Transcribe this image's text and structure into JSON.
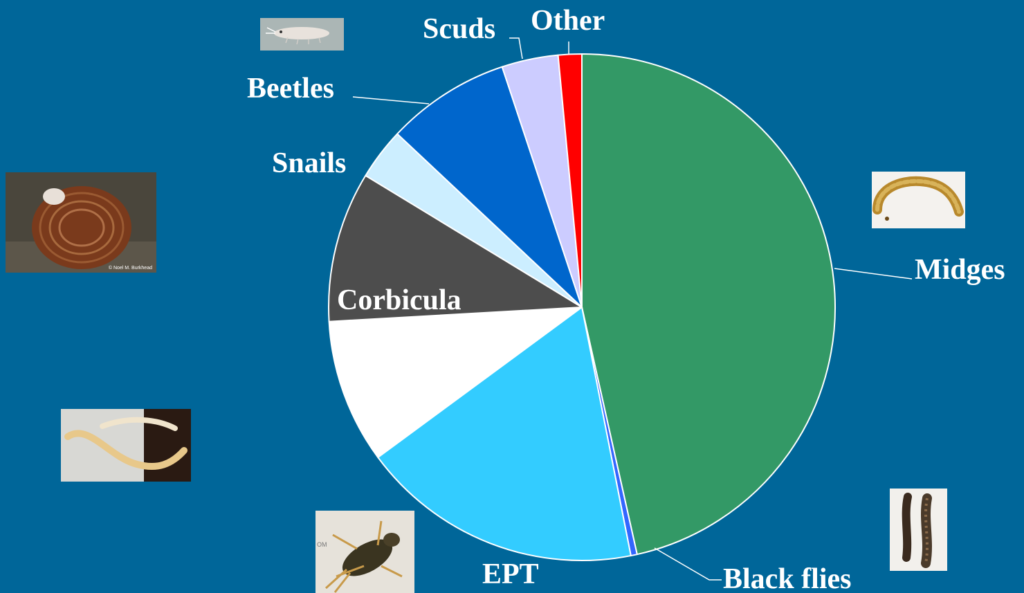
{
  "chart_data": {
    "type": "pie",
    "title": "",
    "start_angle_deg": 0,
    "direction": "clockwise",
    "slices": [
      {
        "label": "Midges",
        "value": 46.5,
        "color": "#339966"
      },
      {
        "label": "Black flies",
        "value": 0.4,
        "color": "#3366ff"
      },
      {
        "label": "EPT",
        "value": 18.0,
        "color": "#33ccff"
      },
      {
        "label": "",
        "value": 9.2,
        "color": "#ffffff"
      },
      {
        "label": "Corbicula",
        "value": 9.6,
        "color": "#4d4d4d"
      },
      {
        "label": "Snails",
        "value": 3.3,
        "color": "#cceeff"
      },
      {
        "label": "Beetles",
        "value": 7.9,
        "color": "#0066cc"
      },
      {
        "label": "Scuds",
        "value": 3.6,
        "color": "#ccccff"
      },
      {
        "label": "Other",
        "value": 1.5,
        "color": "#ff0000"
      }
    ],
    "legend": "none"
  },
  "photos": [
    {
      "name": "scud-photo",
      "depicts": "scud"
    },
    {
      "name": "midge-larva-photo",
      "depicts": "midge larva"
    },
    {
      "name": "corbicula-clam-photo",
      "depicts": "corbicula clam",
      "caption": "© Noel M. Burkhead"
    },
    {
      "name": "worm-photo",
      "depicts": "aquatic worm"
    },
    {
      "name": "mayfly-nymph-photo",
      "depicts": "mayfly nymph"
    },
    {
      "name": "black-fly-larvae-photo",
      "depicts": "black fly larvae"
    }
  ]
}
